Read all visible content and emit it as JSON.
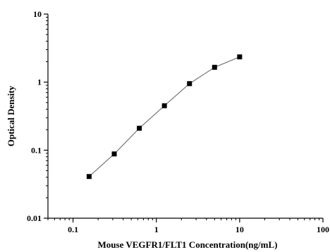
{
  "chart_data": {
    "type": "scatter",
    "xlabel": "Mouse VEGFR1/FLT1 Concentration(ng/mL)",
    "ylabel": "Optical Density",
    "xscale": "log",
    "yscale": "log",
    "xlim": [
      0.05,
      100
    ],
    "ylim": [
      0.01,
      10
    ],
    "x_ticks": [
      {
        "value": 0.1,
        "label": "0.1"
      },
      {
        "value": 1,
        "label": "1"
      },
      {
        "value": 10,
        "label": "10"
      },
      {
        "value": 100,
        "label": "100"
      }
    ],
    "y_ticks": [
      {
        "value": 0.01,
        "label": "0.01"
      },
      {
        "value": 0.1,
        "label": "0.1"
      },
      {
        "value": 1,
        "label": "1"
      },
      {
        "value": 10,
        "label": "10"
      }
    ],
    "series": [
      {
        "x": [
          0.156,
          0.3125,
          0.625,
          1.25,
          2.5,
          5,
          10
        ],
        "y": [
          0.041,
          0.088,
          0.21,
          0.45,
          0.95,
          1.65,
          2.35
        ],
        "color": "#000000",
        "line_color": "#777777",
        "marker": "square"
      }
    ],
    "grid": false,
    "legend": false
  }
}
